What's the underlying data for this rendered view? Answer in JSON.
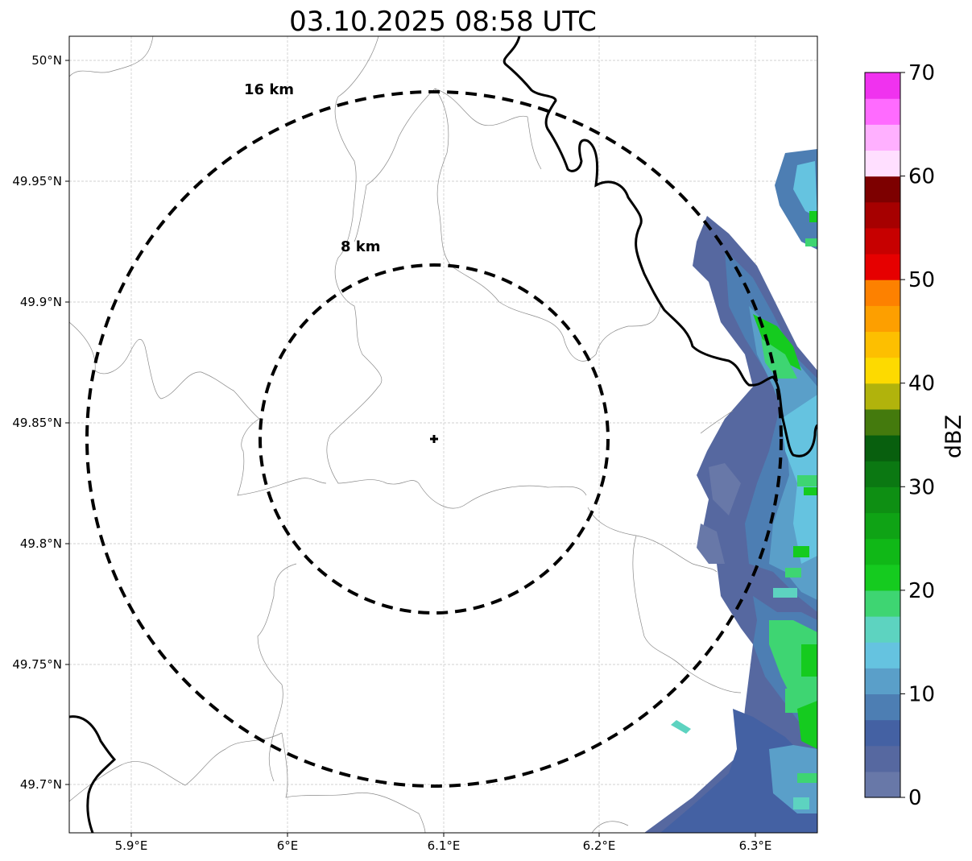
{
  "title": "03.10.2025 08:58 UTC",
  "map": {
    "x_ticks": [
      "5.9°E",
      "6°E",
      "6.1°E",
      "6.2°E",
      "6.3°E"
    ],
    "y_ticks": [
      "50°N",
      "49.95°N",
      "49.9°N",
      "49.85°N",
      "49.8°N",
      "49.75°N",
      "49.7°N"
    ],
    "grid": "on, dashed",
    "radar_site_marker": "plus-icon",
    "range_rings": [
      {
        "label": "8 km",
        "style": "black dashed"
      },
      {
        "label": "16 km",
        "style": "black dashed"
      }
    ],
    "boundaries": {
      "national_border": "black thick line",
      "regional_borders": "thin gray lines"
    },
    "precipitation": "reflectivity echoes along the eastern edge of the map"
  },
  "colorbar": {
    "label": "dBZ",
    "ticks": [
      "0",
      "10",
      "20",
      "30",
      "40",
      "50",
      "60",
      "70"
    ],
    "colors": [
      "#6878a8",
      "#5668a0",
      "#4461a3",
      "#4d7eb3",
      "#5a9fc9",
      "#65c3e0",
      "#5dd3c0",
      "#3ed572",
      "#15cb1f",
      "#10b817",
      "#0fa315",
      "#0e8f13",
      "#0b7812",
      "#085f0e",
      "#447a0d",
      "#b1b30c",
      "#fdda00",
      "#fdbf00",
      "#fd9f00",
      "#fd8100",
      "#e60000",
      "#c70000",
      "#a60000",
      "#7d0000",
      "#ffdfff",
      "#ffb0ff",
      "#ff6bff",
      "#f032ef"
    ]
  }
}
